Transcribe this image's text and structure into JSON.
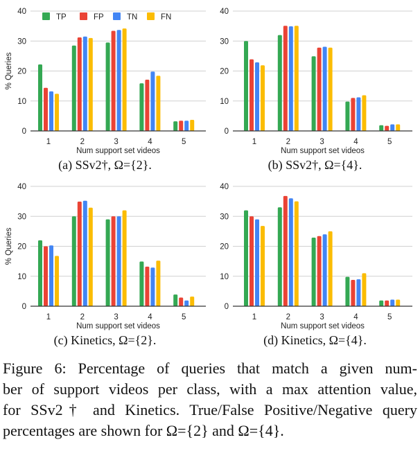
{
  "colors": {
    "TP": "#34a853",
    "FP": "#ea4335",
    "TN": "#4285f4",
    "FN": "#fbbc04",
    "grid": "#d0d0d0",
    "axis": "#333333"
  },
  "chart_data": [
    {
      "type": "bar",
      "caption": "(a) SSv2†, Ω={2}.",
      "xlabel": "Num support set videos",
      "ylabel": "% Queries",
      "categories": [
        "1",
        "2",
        "3",
        "4",
        "5"
      ],
      "ylim": [
        0,
        40
      ],
      "yticks": [
        "0",
        "10",
        "20",
        "30",
        "40"
      ],
      "grid": true,
      "legend": "top",
      "series": [
        {
          "name": "TP",
          "values": [
            22.2,
            28.5,
            29.5,
            15.9,
            3.2
          ]
        },
        {
          "name": "FP",
          "values": [
            14.4,
            31.2,
            33.4,
            17.1,
            3.4
          ]
        },
        {
          "name": "TN",
          "values": [
            13.2,
            31.5,
            33.7,
            19.8,
            3.4
          ]
        },
        {
          "name": "FN",
          "values": [
            12.4,
            31.0,
            34.2,
            18.4,
            3.7
          ]
        }
      ]
    },
    {
      "type": "bar",
      "caption": "(b) SSv2†, Ω={4}.",
      "xlabel": "Num support set videos",
      "ylabel": "",
      "categories": [
        "1",
        "2",
        "3",
        "4",
        "5"
      ],
      "ylim": [
        0,
        40
      ],
      "yticks": [
        "0",
        "10",
        "20",
        "30",
        "40"
      ],
      "grid": true,
      "series": [
        {
          "values": [
            30.0,
            32.0,
            24.9,
            9.8,
            1.9
          ]
        },
        {
          "values": [
            23.9,
            35.1,
            27.8,
            11.0,
            1.7
          ]
        },
        {
          "values": [
            22.9,
            34.9,
            28.1,
            11.2,
            2.2
          ]
        },
        {
          "values": [
            21.9,
            35.1,
            27.8,
            11.9,
            2.2
          ]
        }
      ]
    },
    {
      "type": "bar",
      "caption": "(c) Kinetics, Ω={2}.",
      "xlabel": "Num support set videos",
      "ylabel": "% Queries",
      "categories": [
        "1",
        "2",
        "3",
        "4",
        "5"
      ],
      "ylim": [
        0,
        40
      ],
      "yticks": [
        "0",
        "10",
        "20",
        "30",
        "40"
      ],
      "grid": true,
      "series": [
        {
          "values": [
            22.0,
            30.0,
            29.0,
            14.9,
            3.9
          ]
        },
        {
          "values": [
            20.0,
            34.9,
            30.0,
            13.2,
            2.9
          ]
        },
        {
          "values": [
            20.3,
            35.2,
            30.0,
            12.9,
            1.9
          ]
        },
        {
          "values": [
            16.8,
            32.9,
            32.0,
            15.2,
            3.2
          ]
        }
      ]
    },
    {
      "type": "bar",
      "caption": "(d) Kinetics, Ω={4}.",
      "xlabel": "Num support set videos",
      "ylabel": "",
      "categories": [
        "1",
        "2",
        "3",
        "4",
        "5"
      ],
      "ylim": [
        0,
        40
      ],
      "yticks": [
        "0",
        "10",
        "20",
        "30",
        "40"
      ],
      "grid": true,
      "series": [
        {
          "values": [
            32.0,
            33.0,
            22.9,
            9.8,
            1.9
          ]
        },
        {
          "values": [
            30.0,
            36.8,
            23.4,
            8.8,
            1.9
          ]
        },
        {
          "values": [
            29.0,
            36.0,
            24.0,
            9.0,
            2.2
          ]
        },
        {
          "values": [
            26.8,
            35.0,
            25.0,
            11.0,
            2.2
          ]
        }
      ]
    }
  ],
  "figure_caption": [
    "Figure 6: Percentage of queries that match a given num-",
    "ber of support videos per class, with a max attention value,",
    "for SSv2† and Kinetics. True/False Positive/Negative query",
    "percentages are shown for Ω={2} and Ω={4}."
  ]
}
